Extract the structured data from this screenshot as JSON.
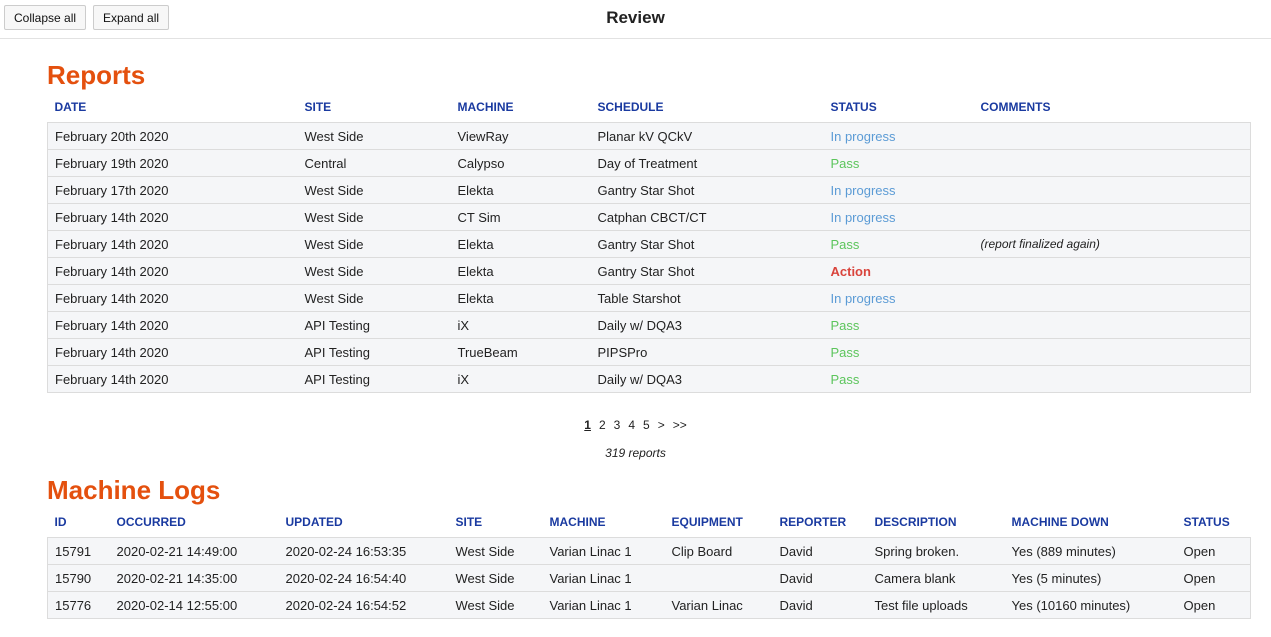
{
  "toolbar": {
    "buttons": [
      "Collapse all",
      "Expand all"
    ],
    "title": "Review"
  },
  "reports": {
    "heading": "Reports",
    "columns": [
      "DATE",
      "SITE",
      "MACHINE",
      "SCHEDULE",
      "STATUS",
      "COMMENTS"
    ],
    "rows": [
      [
        "February 20th 2020",
        "West Side",
        "ViewRay",
        "Planar kV QCkV",
        {
          "label": "In progress",
          "color": "#5b9bd5"
        },
        ""
      ],
      [
        "February 19th 2020",
        "Central",
        "Calypso",
        "Day of Treatment",
        {
          "label": "Pass",
          "color": "#5cc55c"
        },
        ""
      ],
      [
        "February 17th 2020",
        "West Side",
        "Elekta",
        "Gantry Star Shot",
        {
          "label": "In progress",
          "color": "#5b9bd5"
        },
        ""
      ],
      [
        "February 14th 2020",
        "West Side",
        "CT Sim",
        "Catphan CBCT/CT",
        {
          "label": "In progress",
          "color": "#5b9bd5"
        },
        ""
      ],
      [
        "February 14th 2020",
        "West Side",
        "Elekta",
        "Gantry Star Shot",
        {
          "label": "Pass",
          "color": "#5cc55c"
        },
        "(report finalized again)"
      ],
      [
        "February 14th 2020",
        "West Side",
        "Elekta",
        "Gantry Star Shot",
        {
          "label": "Action",
          "color": "#d9443c",
          "weight": "bold"
        },
        ""
      ],
      [
        "February 14th 2020",
        "West Side",
        "Elekta",
        "Table Starshot",
        {
          "label": "In progress",
          "color": "#5b9bd5"
        },
        ""
      ],
      [
        "February 14th 2020",
        "API Testing",
        "iX",
        "Daily w/ DQA3",
        {
          "label": "Pass",
          "color": "#5cc55c"
        },
        ""
      ],
      [
        "February 14th 2020",
        "API Testing",
        "TrueBeam",
        "PIPSPro",
        {
          "label": "Pass",
          "color": "#5cc55c"
        },
        ""
      ],
      [
        "February 14th 2020",
        "API Testing",
        "iX",
        "Daily w/ DQA3",
        {
          "label": "Pass",
          "color": "#5cc55c"
        },
        ""
      ]
    ],
    "pagination": [
      "1",
      "2",
      "3",
      "4",
      "5",
      ">",
      ">>"
    ],
    "count": "319 reports"
  },
  "machine_logs": {
    "heading": "Machine Logs",
    "columns": [
      "ID",
      "OCCURRED",
      "UPDATED",
      "SITE",
      "MACHINE",
      "EQUIPMENT",
      "REPORTER",
      "DESCRIPTION",
      "MACHINE DOWN",
      "STATUS"
    ],
    "rows": [
      [
        "15791",
        "2020-02-21 14:49:00",
        "2020-02-24 16:53:35",
        "West Side",
        "Varian Linac 1",
        "Clip Board",
        "David",
        "Spring broken.",
        "Yes (889 minutes)",
        "Open"
      ],
      [
        "15790",
        "2020-02-21 14:35:00",
        "2020-02-24 16:54:40",
        "West Side",
        "Varian Linac 1",
        "",
        "David",
        "Camera blank",
        "Yes (5 minutes)",
        "Open"
      ],
      [
        "15776",
        "2020-02-14 12:55:00",
        "2020-02-24 16:54:52",
        "West Side",
        "Varian Linac 1",
        "Varian Linac",
        "David",
        "Test file uploads",
        "Yes (10160 minutes)",
        "Open"
      ]
    ]
  }
}
